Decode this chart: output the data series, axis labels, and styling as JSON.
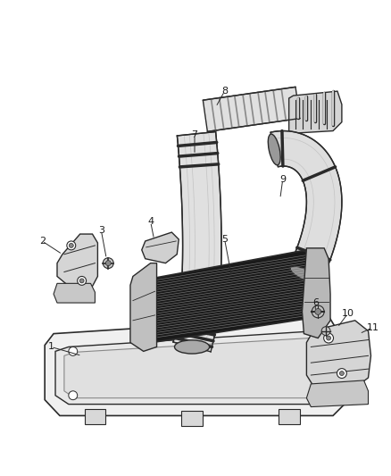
{
  "background_color": "#ffffff",
  "line_color": "#2a2a2a",
  "fill_light": "#e8e8e8",
  "fill_mid": "#d0d0d0",
  "fill_dark": "#555555",
  "fill_darkest": "#333333",
  "figsize": [
    4.38,
    5.33
  ],
  "dpi": 100
}
